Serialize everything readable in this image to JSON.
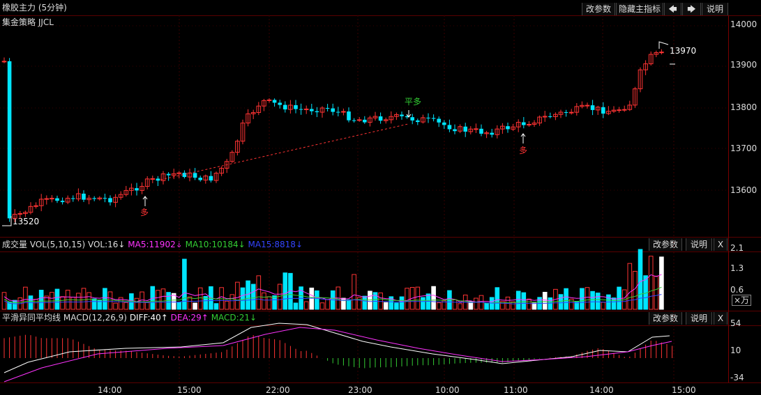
{
  "title": "橡胶主力 (5分钟)",
  "toolbar": {
    "change_params": "改参数",
    "hide_main": "隐藏主指标",
    "left_arrow": "🡄",
    "right_arrow": "🡆",
    "explain": "说明"
  },
  "main_panel": {
    "strategy": "集金策略 JJCL",
    "y_ticks": [
      "14000",
      "13900",
      "13800",
      "13700",
      "13600"
    ],
    "last_price": "13970",
    "low_price": "13520",
    "signals": {
      "buy1": "多",
      "flat": "平多",
      "buy2": "多"
    }
  },
  "vol_panel": {
    "label": "成交量",
    "name": "VOL(5,10,15)",
    "vol": "VOL:16↓",
    "ma5": "MA5:11902↓",
    "ma10": "MA10:10184↓",
    "ma15": "MA15:8818↓",
    "change_params": "改参数",
    "explain": "说明",
    "close": "X",
    "y_ticks": [
      "2.1",
      "1.3",
      "0.6"
    ],
    "unit": "×万"
  },
  "macd_panel": {
    "label": "平滑异同平均线",
    "name": "MACD(12,26,9)",
    "diff": "DIFF:40↑",
    "dea": "DEA:29↑",
    "macd": "MACD:21↓",
    "change_params": "改参数",
    "explain": "说明",
    "close": "X",
    "y_ticks": [
      "54",
      "10",
      "-34"
    ]
  },
  "x_axis": [
    "14:00",
    "15:00",
    "22:00",
    "23:00",
    "10:00",
    "11:00",
    "14:00",
    "15:00"
  ],
  "colors": {
    "up": "#ff3333",
    "down": "#00e5ff",
    "ma5": "#ff33ff",
    "ma10": "#33cc33",
    "ma15": "#3344ff",
    "grid": "#5a0000",
    "diff": "#ffffff",
    "dea": "#ff33ff"
  }
}
